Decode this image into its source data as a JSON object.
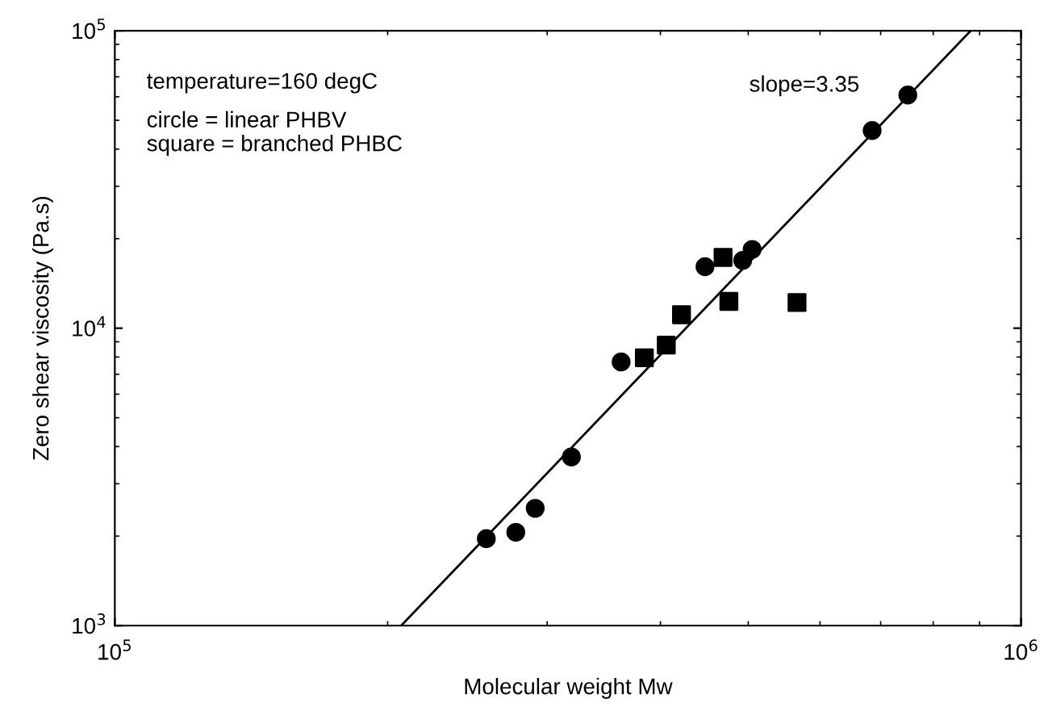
{
  "chart_data": {
    "type": "scatter",
    "log": "xy",
    "xlabel": "Molecular weight Mw",
    "ylabel": "Zero shear viscosity (Pa.s)",
    "xlim": [
      100000,
      1000000
    ],
    "ylim": [
      1000,
      100000
    ],
    "xticks": [
      {
        "value": 100000,
        "label": "10$^{5}$"
      },
      {
        "value": 1000000,
        "label": "10$^{6}$"
      }
    ],
    "yticks": [
      {
        "value": 1000,
        "label": "10$^{3}$"
      },
      {
        "value": 10000,
        "label": "10$^{4}$"
      },
      {
        "value": 100000,
        "label": "10$^{5}$"
      }
    ],
    "grid": false,
    "legend": false,
    "annotations": [
      "temperature=160 degC",
      "circle = linear PHBV",
      "square = branched PHBC",
      "slope=3.35"
    ],
    "series": [
      {
        "marker": "circle",
        "color": "#000000",
        "x": [
          257000,
          277000,
          291000,
          319000,
          362000,
          448000,
          493000,
          505000,
          685000,
          750000
        ],
        "values": [
          1960,
          2060,
          2480,
          3690,
          7700,
          16100,
          16900,
          18400,
          46200,
          60800
        ]
      },
      {
        "marker": "square",
        "color": "#000000",
        "x": [
          384000,
          406000,
          422000,
          469000,
          476000,
          566000
        ],
        "values": [
          7950,
          8770,
          11100,
          17300,
          12300,
          12200
        ]
      },
      {
        "type": "line",
        "marker": "none",
        "line_style": "solid",
        "color": "#000000",
        "x": [
          207000,
          880000
        ],
        "values": [
          1000,
          100000
        ]
      }
    ]
  }
}
